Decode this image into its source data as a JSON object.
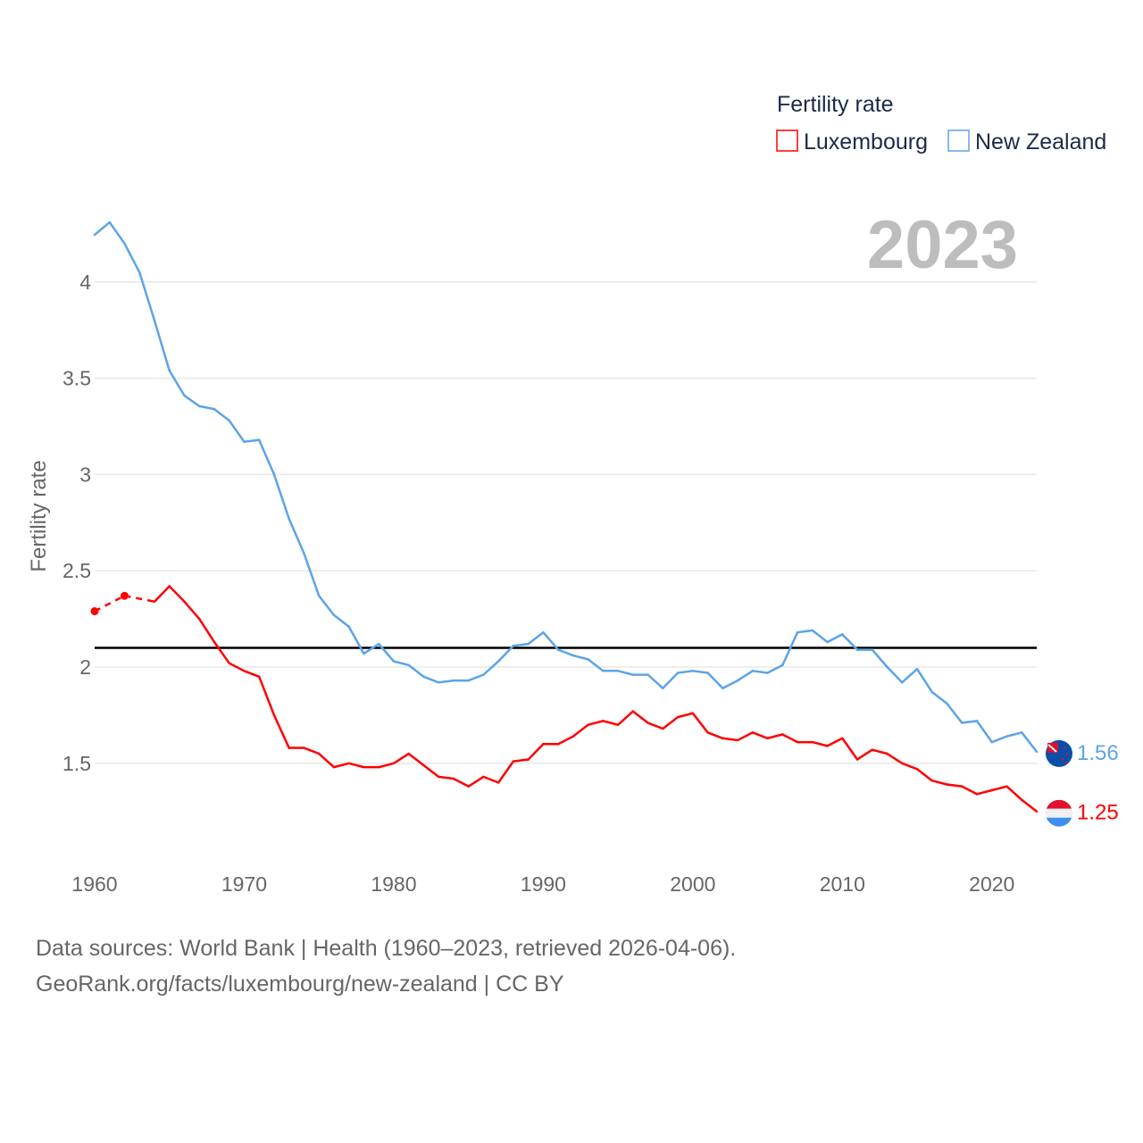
{
  "chart_data": {
    "type": "line",
    "title": "",
    "ylabel": "Fertility rate",
    "xlabel": "",
    "ylim": [
      1.08,
      4.36
    ],
    "xlim": [
      1960,
      2023
    ],
    "yticks": [
      "1.5",
      "2",
      "2.5",
      "3",
      "3.5",
      "4"
    ],
    "ytick_values": [
      1.5,
      2,
      2.5,
      3,
      3.5,
      4
    ],
    "xticks": [
      "1960",
      "1970",
      "1980",
      "1990",
      "2000",
      "2010",
      "2020"
    ],
    "xtick_values": [
      1960,
      1970,
      1980,
      1990,
      2000,
      2010,
      2020
    ],
    "grid": true,
    "year_label": "2023",
    "legend": {
      "title": "Fertility rate",
      "placement": "top-right"
    },
    "reference_line": {
      "value": 2.1,
      "color": "#000000"
    },
    "x": [
      1960,
      1961,
      1962,
      1963,
      1964,
      1965,
      1966,
      1967,
      1968,
      1969,
      1970,
      1971,
      1972,
      1973,
      1974,
      1975,
      1976,
      1977,
      1978,
      1979,
      1980,
      1981,
      1982,
      1983,
      1984,
      1985,
      1986,
      1987,
      1988,
      1989,
      1990,
      1991,
      1992,
      1993,
      1994,
      1995,
      1996,
      1997,
      1998,
      1999,
      2000,
      2001,
      2002,
      2003,
      2004,
      2005,
      2006,
      2007,
      2008,
      2009,
      2010,
      2011,
      2012,
      2013,
      2014,
      2015,
      2016,
      2017,
      2018,
      2019,
      2020,
      2021,
      2022,
      2023
    ],
    "series": [
      {
        "name": "Luxembourg",
        "color": "#ff0000",
        "end_label": "1.25",
        "values": [
          2.29,
          null,
          2.37,
          null,
          2.34,
          2.42,
          2.34,
          2.25,
          2.13,
          2.02,
          1.98,
          1.95,
          1.75,
          1.58,
          1.58,
          1.55,
          1.48,
          1.5,
          1.48,
          1.48,
          1.5,
          1.55,
          1.49,
          1.43,
          1.42,
          1.38,
          1.43,
          1.4,
          1.51,
          1.52,
          1.6,
          1.6,
          1.64,
          1.7,
          1.72,
          1.7,
          1.77,
          1.71,
          1.68,
          1.74,
          1.76,
          1.66,
          1.63,
          1.62,
          1.66,
          1.63,
          1.65,
          1.61,
          1.61,
          1.59,
          1.63,
          1.52,
          1.57,
          1.55,
          1.5,
          1.47,
          1.41,
          1.39,
          1.38,
          1.34,
          1.36,
          1.38,
          1.31,
          1.25
        ]
      },
      {
        "name": "New Zealand",
        "color": "#5ba4e8",
        "end_label": "1.56",
        "values": [
          4.245,
          4.31,
          4.2,
          4.05,
          3.8,
          3.54,
          3.41,
          3.355,
          3.34,
          3.28,
          3.17,
          3.18,
          3.0,
          2.77,
          2.59,
          2.37,
          2.27,
          2.21,
          2.07,
          2.12,
          2.03,
          2.01,
          1.95,
          1.92,
          1.93,
          1.93,
          1.96,
          2.03,
          2.11,
          2.12,
          2.18,
          2.09,
          2.06,
          2.04,
          1.98,
          1.98,
          1.96,
          1.96,
          1.89,
          1.97,
          1.98,
          1.97,
          1.89,
          1.93,
          1.98,
          1.97,
          2.01,
          2.18,
          2.19,
          2.13,
          2.17,
          2.09,
          2.09,
          2.0,
          1.92,
          1.99,
          1.87,
          1.81,
          1.71,
          1.72,
          1.61,
          1.64,
          1.66,
          1.56
        ]
      }
    ]
  },
  "footer": {
    "line1": "Data sources: World Bank | Health (1960–2023, retrieved 2026-04-06).",
    "line2": "GeoRank.org/facts/luxembourg/new-zealand | CC BY"
  }
}
